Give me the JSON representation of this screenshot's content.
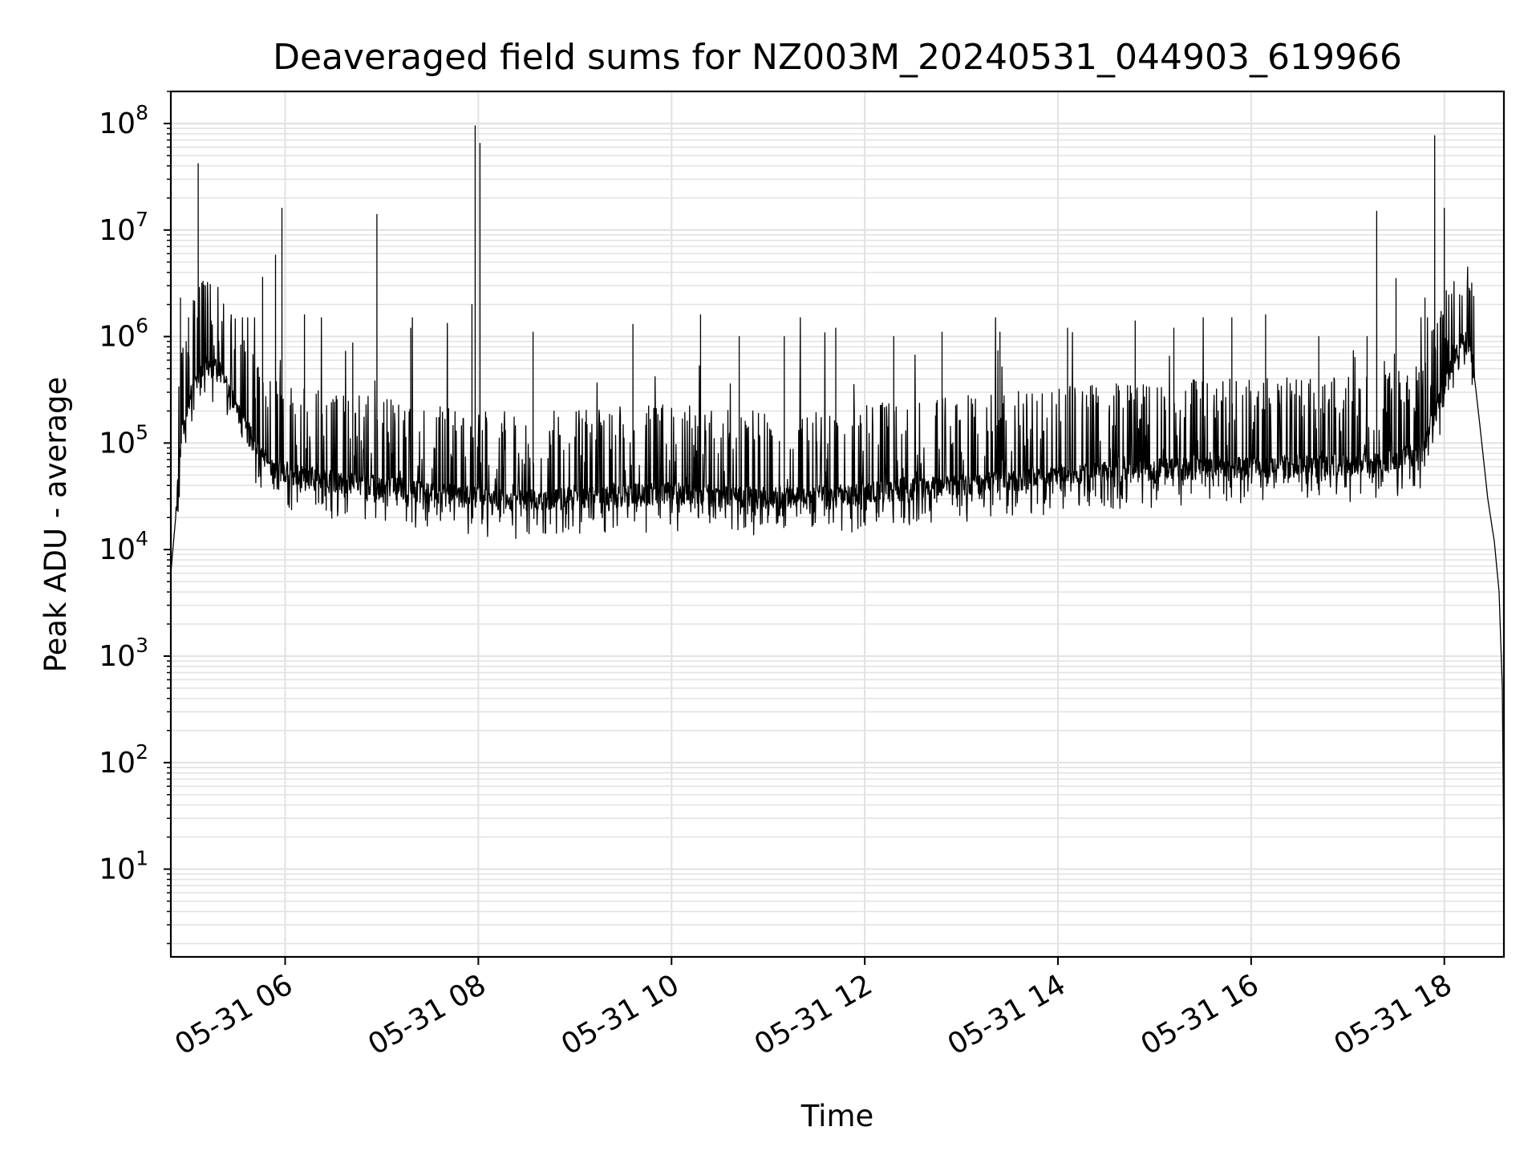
{
  "chart_data": {
    "type": "line",
    "title": "Deaveraged field sums for NZ003M_20240531_044903_619966",
    "xlabel": "Time",
    "ylabel": "Peak ADU - average",
    "yscale": "log",
    "xlim": [
      "05-31 04:49",
      "05-31 18:37"
    ],
    "ylim": [
      1.5,
      200000000
    ],
    "grid": true,
    "line_color": "#000000",
    "grid_color": "#e3e3e3",
    "x_ticks": [
      {
        "hour": 6,
        "label": "05-31 06"
      },
      {
        "hour": 8,
        "label": "05-31 08"
      },
      {
        "hour": 10,
        "label": "05-31 10"
      },
      {
        "hour": 12,
        "label": "05-31 12"
      },
      {
        "hour": 14,
        "label": "05-31 14"
      },
      {
        "hour": 16,
        "label": "05-31 16"
      },
      {
        "hour": 18,
        "label": "05-31 18"
      }
    ],
    "y_ticks": [
      {
        "value": 10,
        "base": "10",
        "exp": "1"
      },
      {
        "value": 100,
        "base": "10",
        "exp": "2"
      },
      {
        "value": 1000,
        "base": "10",
        "exp": "3"
      },
      {
        "value": 10000,
        "base": "10",
        "exp": "4"
      },
      {
        "value": 100000,
        "base": "10",
        "exp": "5"
      },
      {
        "value": 1000000,
        "base": "10",
        "exp": "6"
      },
      {
        "value": 10000000,
        "base": "10",
        "exp": "7"
      },
      {
        "value": 100000000,
        "base": "10",
        "exp": "8"
      }
    ],
    "baseline": [
      [
        "04:49",
        6000
      ],
      [
        "04:52",
        20000
      ],
      [
        "04:56",
        120000
      ],
      [
        "05:02",
        300000
      ],
      [
        "05:10",
        550000
      ],
      [
        "05:20",
        450000
      ],
      [
        "05:30",
        200000
      ],
      [
        "05:42",
        90000
      ],
      [
        "05:52",
        55000
      ],
      [
        "06:20",
        45000
      ],
      [
        "07:00",
        38000
      ],
      [
        "07:40",
        32000
      ],
      [
        "08:20",
        28000
      ],
      [
        "09:00",
        30000
      ],
      [
        "10:00",
        33000
      ],
      [
        "10:40",
        30000
      ],
      [
        "11:20",
        30000
      ],
      [
        "12:00",
        33000
      ],
      [
        "12:40",
        37000
      ],
      [
        "13:20",
        42000
      ],
      [
        "14:00",
        48000
      ],
      [
        "15:00",
        55000
      ],
      [
        "16:00",
        58000
      ],
      [
        "16:40",
        60000
      ],
      [
        "17:20",
        62000
      ],
      [
        "17:45",
        80000
      ],
      [
        "17:55",
        200000
      ],
      [
        "18:05",
        600000
      ],
      [
        "18:12",
        900000
      ],
      [
        "18:17",
        700000
      ],
      [
        "18:22",
        150000
      ],
      [
        "18:27",
        30000
      ],
      [
        "18:31",
        12000
      ],
      [
        "18:34",
        4000
      ],
      [
        "18:36",
        500
      ],
      [
        "18:37",
        10
      ]
    ],
    "spikes": [
      [
        "04:55",
        2300000
      ],
      [
        "05:00",
        1100000
      ],
      [
        "05:06",
        42000000
      ],
      [
        "05:09",
        3300000
      ],
      [
        "05:14",
        1400000
      ],
      [
        "05:46",
        3600000
      ],
      [
        "05:54",
        5800000
      ],
      [
        "05:58",
        16000000
      ],
      [
        "06:12",
        1600000
      ],
      [
        "06:42",
        870000
      ],
      [
        "06:57",
        14000000
      ],
      [
        "07:18",
        1200000
      ],
      [
        "07:56",
        2000000
      ],
      [
        "07:58",
        95000000
      ],
      [
        "08:01",
        65000000
      ],
      [
        "08:34",
        1100000
      ],
      [
        "09:36",
        1300000
      ],
      [
        "10:18",
        1600000
      ],
      [
        "10:42",
        1000000
      ],
      [
        "11:10",
        1000000
      ],
      [
        "11:42",
        1200000
      ],
      [
        "12:18",
        1000000
      ],
      [
        "12:48",
        1100000
      ],
      [
        "13:24",
        1100000
      ],
      [
        "14:06",
        1200000
      ],
      [
        "14:48",
        1400000
      ],
      [
        "15:12",
        1200000
      ],
      [
        "15:48",
        1500000
      ],
      [
        "16:09",
        1600000
      ],
      [
        "16:42",
        1000000
      ],
      [
        "17:12",
        1000000
      ],
      [
        "17:18",
        15000000
      ],
      [
        "17:30",
        3500000
      ],
      [
        "17:48",
        2300000
      ],
      [
        "17:54",
        77000000
      ],
      [
        "18:00",
        16000000
      ]
    ]
  }
}
